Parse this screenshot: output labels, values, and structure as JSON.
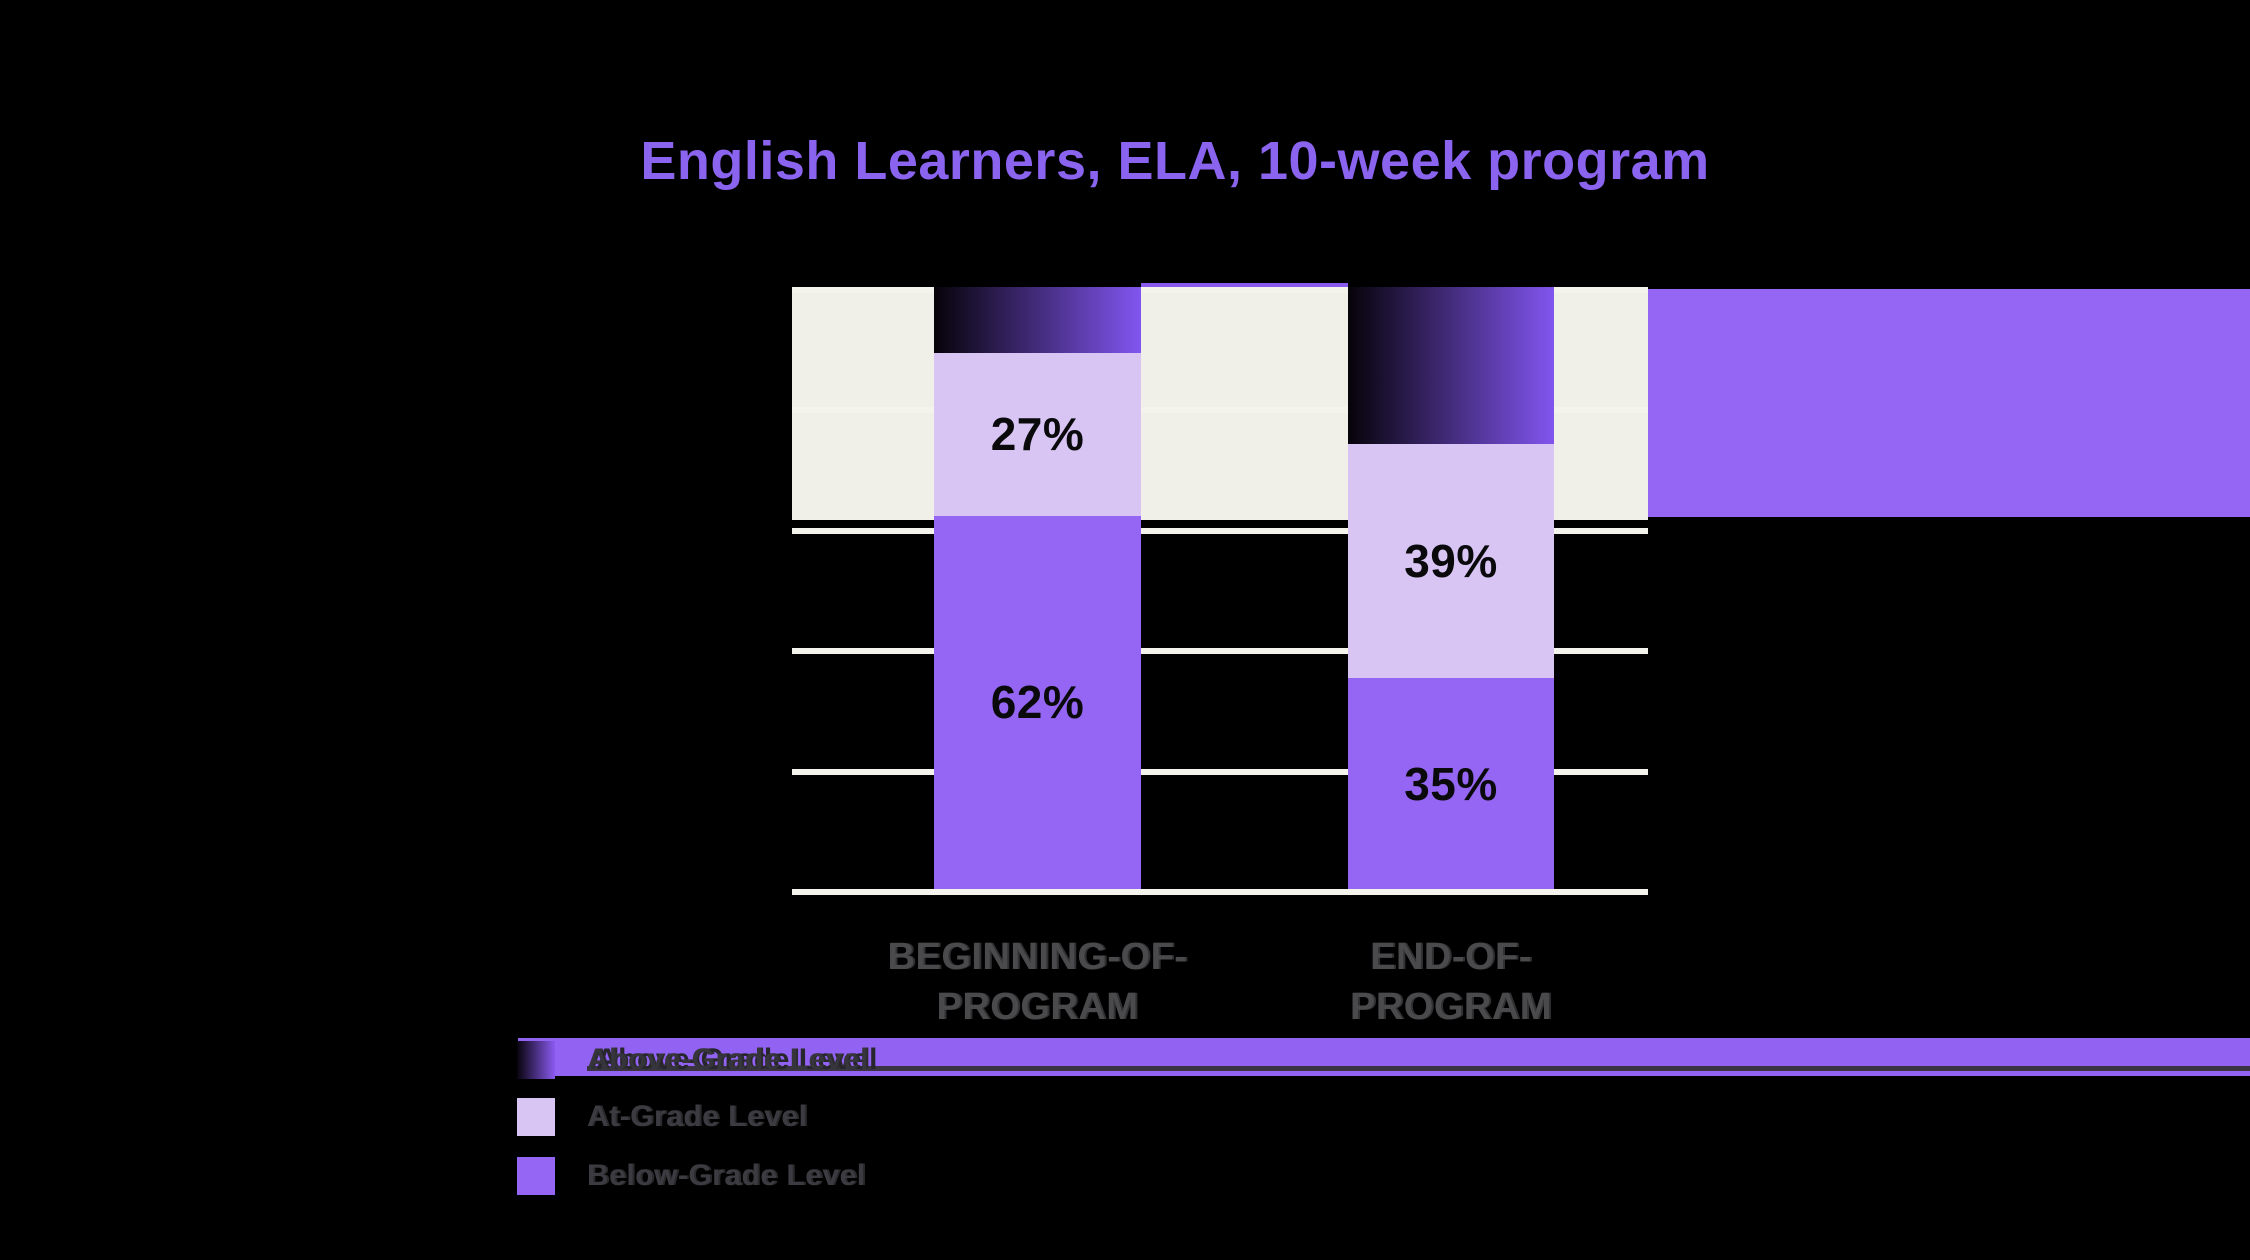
{
  "title": "English Learners, ELA, 10-week program",
  "colors": {
    "background": "#000000",
    "title_purple": "#8a63ef",
    "cream_band": "#f1f0e8",
    "gridline": "#f4f3ec",
    "accent_purple": "#9565f3",
    "legend_band_purple": "#9263f2",
    "at_grade_light_purple": "#d8c5f4",
    "below_grade_purple": "#9565f3",
    "above_grade_gradient_start": "#060309",
    "above_grade_gradient_end": "#8155ef",
    "axis_label_gray": "#4a4a4c",
    "legend_text_gray": "#3b3b41",
    "value_label_black": "#0a0a0d"
  },
  "chart_data": {
    "type": "bar",
    "subtype": "stacked-100-percent-column",
    "title": "English Learners, ELA, 10-week program",
    "categories": [
      "BEGINNING-OF-PROGRAM",
      "END-OF-PROGRAM"
    ],
    "series": [
      {
        "name": "Above-Grade Level",
        "values": [
          11,
          26
        ],
        "value_labels": [
          "",
          ""
        ]
      },
      {
        "name": "At-Grade Level",
        "values": [
          27,
          39
        ],
        "value_labels": [
          "27%",
          "39%"
        ]
      },
      {
        "name": "Below-Grade Level",
        "values": [
          62,
          35
        ],
        "value_labels": [
          "62%",
          "35%"
        ]
      }
    ],
    "ylim": [
      0,
      100
    ],
    "gridline_percents": [
      0,
      20,
      40,
      60,
      80,
      100
    ],
    "grid": true,
    "legend_position": "bottom-left",
    "visible_value_labels": [
      "27%",
      "62%",
      "39%",
      "35%"
    ]
  },
  "legend": {
    "items": [
      {
        "label": "Above-Grade Level",
        "swatch": "above"
      },
      {
        "label": "At-Grade Level",
        "swatch": "at"
      },
      {
        "label": "Below-Grade Level",
        "swatch": "below"
      }
    ]
  }
}
